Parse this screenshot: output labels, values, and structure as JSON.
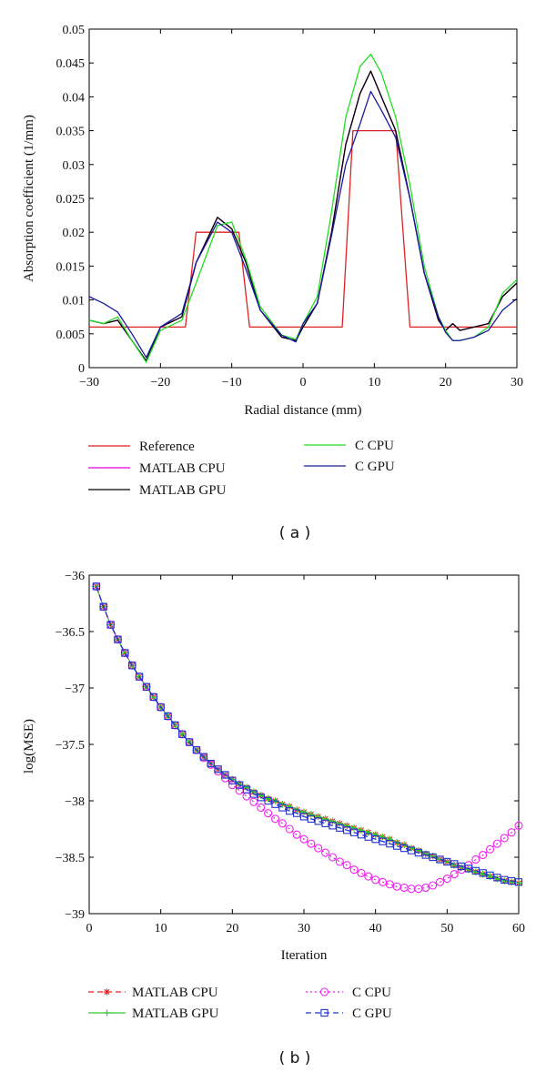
{
  "chart_data": [
    {
      "type": "line",
      "panel_label": "( a )",
      "xlabel": "Radial distance (mm)",
      "ylabel": "Absorption coefficient (1/mm)",
      "xlim": [
        -30,
        30
      ],
      "ylim": [
        0,
        0.05
      ],
      "xticks": [
        -30,
        -20,
        -10,
        0,
        10,
        20,
        30
      ],
      "xtick_labels": [
        "−30",
        "−20",
        "−10",
        "0",
        "10",
        "20",
        "30"
      ],
      "yticks": [
        0,
        0.005,
        0.01,
        0.015,
        0.02,
        0.025,
        0.03,
        0.035,
        0.04,
        0.045,
        0.05
      ],
      "ytick_labels": [
        "0",
        "0.005",
        "0.01",
        "0.015",
        "0.02",
        "0.025",
        "0.03",
        "0.035",
        "0.04",
        "0.045",
        "0.05"
      ],
      "legend_position": "below",
      "series": [
        {
          "name": "Reference",
          "color": "#dd2222",
          "marker": "none",
          "x": [
            -30,
            -16.5,
            -15,
            -9,
            -7.5,
            -1.5,
            5.5,
            7,
            13,
            15,
            30
          ],
          "y": [
            0.006,
            0.006,
            0.02,
            0.02,
            0.006,
            0.006,
            0.006,
            0.035,
            0.035,
            0.006,
            0.006
          ]
        },
        {
          "name": "MATLAB CPU",
          "color": "#e000e0",
          "marker": "none",
          "x": [
            -30,
            -28,
            -26,
            -24,
            -22,
            -20,
            -17,
            -15,
            -12,
            -10,
            -8,
            -6,
            -3,
            -1,
            0,
            2,
            4,
            6,
            8,
            9.5,
            11,
            13,
            15,
            17,
            19,
            20,
            21,
            22,
            24,
            26,
            28,
            30
          ],
          "y": [
            0.007,
            0.0065,
            0.007,
            0.004,
            0.001,
            0.006,
            0.0075,
            0.0155,
            0.0222,
            0.0205,
            0.0155,
            0.0085,
            0.0045,
            0.004,
            0.006,
            0.0095,
            0.02,
            0.033,
            0.0405,
            0.0438,
            0.04,
            0.035,
            0.025,
            0.014,
            0.007,
            0.0055,
            0.0065,
            0.0055,
            0.006,
            0.0065,
            0.0105,
            0.0125
          ]
        },
        {
          "name": "MATLAB GPU",
          "color": "#000000",
          "marker": "none",
          "x": [
            -30,
            -28,
            -26,
            -24,
            -22,
            -20,
            -17,
            -15,
            -12,
            -10,
            -8,
            -6,
            -3,
            -1,
            0,
            2,
            4,
            6,
            8,
            9.5,
            11,
            13,
            15,
            17,
            19,
            20,
            21,
            22,
            24,
            26,
            28,
            30
          ],
          "y": [
            0.007,
            0.0065,
            0.007,
            0.004,
            0.001,
            0.006,
            0.0075,
            0.0155,
            0.0222,
            0.0205,
            0.0155,
            0.0085,
            0.0045,
            0.004,
            0.006,
            0.0095,
            0.02,
            0.033,
            0.0405,
            0.0438,
            0.04,
            0.035,
            0.025,
            0.014,
            0.007,
            0.0055,
            0.0065,
            0.0055,
            0.006,
            0.0065,
            0.0105,
            0.0125
          ]
        },
        {
          "name": "C CPU",
          "color": "#22dd22",
          "marker": "none",
          "x": [
            -30,
            -28,
            -26,
            -24,
            -22,
            -20,
            -17,
            -15,
            -12,
            -10,
            -8,
            -6,
            -3,
            -1,
            0,
            2,
            4,
            6,
            8,
            9.5,
            11,
            13,
            15,
            17,
            19,
            20,
            21,
            22,
            24,
            26,
            28,
            30
          ],
          "y": [
            0.007,
            0.0065,
            0.0075,
            0.004,
            0.0008,
            0.0055,
            0.007,
            0.0125,
            0.021,
            0.0215,
            0.016,
            0.009,
            0.0048,
            0.0042,
            0.0065,
            0.0105,
            0.023,
            0.037,
            0.0445,
            0.0463,
            0.0435,
            0.037,
            0.027,
            0.015,
            0.0075,
            0.0055,
            0.004,
            0.004,
            0.0045,
            0.006,
            0.011,
            0.013
          ]
        },
        {
          "name": "C GPU",
          "color": "#1a1aa0",
          "marker": "none",
          "x": [
            -30,
            -28,
            -26,
            -24,
            -22,
            -20,
            -17,
            -15,
            -12,
            -10,
            -8,
            -6,
            -3,
            -1,
            0,
            2,
            4,
            6,
            8,
            9.5,
            11,
            13,
            15,
            17,
            19,
            20,
            21,
            22,
            24,
            26,
            28,
            30
          ],
          "y": [
            0.0105,
            0.0095,
            0.0082,
            0.005,
            0.0015,
            0.006,
            0.008,
            0.0155,
            0.0215,
            0.02,
            0.0145,
            0.0085,
            0.0048,
            0.0038,
            0.0065,
            0.0095,
            0.0195,
            0.03,
            0.036,
            0.0408,
            0.038,
            0.034,
            0.025,
            0.014,
            0.0075,
            0.0052,
            0.004,
            0.004,
            0.0045,
            0.0055,
            0.0085,
            0.0102
          ]
        }
      ]
    },
    {
      "type": "line",
      "panel_label": "( b )",
      "xlabel": "Iteration",
      "ylabel": "log(MSE)",
      "xlim": [
        0,
        60
      ],
      "ylim": [
        -39,
        -36
      ],
      "xticks": [
        0,
        10,
        20,
        30,
        40,
        50,
        60
      ],
      "xtick_labels": [
        "0",
        "10",
        "20",
        "30",
        "40",
        "50",
        "60"
      ],
      "yticks": [
        -36,
        -36.5,
        -37,
        -37.5,
        -38,
        -38.5,
        -39
      ],
      "ytick_labels": [
        "−36",
        "−36.5",
        "−37",
        "−37.5",
        "−38",
        "−38.5",
        "−39"
      ],
      "legend_position": "below",
      "x": [
        1,
        2,
        3,
        4,
        5,
        6,
        7,
        8,
        9,
        10,
        11,
        12,
        13,
        14,
        15,
        16,
        17,
        18,
        19,
        20,
        21,
        22,
        23,
        24,
        25,
        26,
        27,
        28,
        29,
        30,
        31,
        32,
        33,
        34,
        35,
        36,
        37,
        38,
        39,
        40,
        41,
        42,
        43,
        44,
        45,
        46,
        47,
        48,
        49,
        50,
        51,
        52,
        53,
        54,
        55,
        56,
        57,
        58,
        59,
        60
      ],
      "series": [
        {
          "name": "MATLAB CPU",
          "color": "#ee2222",
          "dash": "6 4",
          "marker": "star",
          "y": [
            -36.1,
            -36.28,
            -36.44,
            -36.57,
            -36.69,
            -36.8,
            -36.9,
            -36.99,
            -37.08,
            -37.17,
            -37.25,
            -37.33,
            -37.41,
            -37.48,
            -37.55,
            -37.61,
            -37.67,
            -37.72,
            -37.77,
            -37.81,
            -37.85,
            -37.88,
            -37.92,
            -37.95,
            -37.98,
            -38.0,
            -38.03,
            -38.05,
            -38.08,
            -38.1,
            -38.12,
            -38.14,
            -38.16,
            -38.18,
            -38.2,
            -38.22,
            -38.24,
            -38.26,
            -38.28,
            -38.3,
            -38.32,
            -38.34,
            -38.37,
            -38.39,
            -38.42,
            -38.44,
            -38.47,
            -38.49,
            -38.52,
            -38.54,
            -38.57,
            -38.59,
            -38.61,
            -38.63,
            -38.65,
            -38.67,
            -38.69,
            -38.71,
            -38.72,
            -38.73
          ]
        },
        {
          "name": "MATLAB GPU",
          "color": "#33cc33",
          "dash": "",
          "marker": "plus",
          "y": [
            -36.1,
            -36.28,
            -36.44,
            -36.57,
            -36.69,
            -36.8,
            -36.9,
            -36.99,
            -37.08,
            -37.17,
            -37.25,
            -37.33,
            -37.41,
            -37.48,
            -37.55,
            -37.61,
            -37.67,
            -37.72,
            -37.77,
            -37.81,
            -37.85,
            -37.88,
            -37.92,
            -37.95,
            -37.98,
            -38.0,
            -38.03,
            -38.05,
            -38.08,
            -38.1,
            -38.12,
            -38.14,
            -38.16,
            -38.18,
            -38.2,
            -38.22,
            -38.24,
            -38.26,
            -38.28,
            -38.3,
            -38.32,
            -38.34,
            -38.37,
            -38.39,
            -38.42,
            -38.44,
            -38.47,
            -38.49,
            -38.52,
            -38.54,
            -38.57,
            -38.59,
            -38.61,
            -38.63,
            -38.65,
            -38.67,
            -38.69,
            -38.71,
            -38.72,
            -38.73
          ]
        },
        {
          "name": "C CPU",
          "color": "#ee22ee",
          "dash": "2 3",
          "marker": "circle",
          "y": [
            -36.1,
            -36.28,
            -36.44,
            -36.57,
            -36.69,
            -36.8,
            -36.9,
            -36.99,
            -37.08,
            -37.17,
            -37.25,
            -37.33,
            -37.41,
            -37.48,
            -37.55,
            -37.62,
            -37.68,
            -37.74,
            -37.8,
            -37.86,
            -37.91,
            -37.96,
            -38.01,
            -38.06,
            -38.11,
            -38.16,
            -38.2,
            -38.25,
            -38.3,
            -38.34,
            -38.38,
            -38.42,
            -38.46,
            -38.5,
            -38.54,
            -38.57,
            -38.61,
            -38.64,
            -38.67,
            -38.7,
            -38.72,
            -38.74,
            -38.76,
            -38.77,
            -38.78,
            -38.78,
            -38.77,
            -38.75,
            -38.72,
            -38.69,
            -38.65,
            -38.61,
            -38.57,
            -38.52,
            -38.48,
            -38.43,
            -38.38,
            -38.33,
            -38.28,
            -38.22
          ]
        },
        {
          "name": "C GPU",
          "color": "#2233cc",
          "dash": "6 4",
          "marker": "square",
          "y": [
            -36.1,
            -36.28,
            -36.44,
            -36.57,
            -36.69,
            -36.8,
            -36.9,
            -36.99,
            -37.08,
            -37.17,
            -37.25,
            -37.33,
            -37.41,
            -37.48,
            -37.55,
            -37.61,
            -37.67,
            -37.72,
            -37.77,
            -37.82,
            -37.86,
            -37.9,
            -37.94,
            -37.97,
            -38.0,
            -38.03,
            -38.06,
            -38.09,
            -38.11,
            -38.14,
            -38.16,
            -38.18,
            -38.2,
            -38.22,
            -38.24,
            -38.26,
            -38.28,
            -38.3,
            -38.32,
            -38.34,
            -38.36,
            -38.38,
            -38.4,
            -38.42,
            -38.44,
            -38.46,
            -38.48,
            -38.5,
            -38.52,
            -38.54,
            -38.56,
            -38.58,
            -38.6,
            -38.62,
            -38.64,
            -38.66,
            -38.68,
            -38.7,
            -38.71,
            -38.72
          ]
        }
      ]
    }
  ]
}
